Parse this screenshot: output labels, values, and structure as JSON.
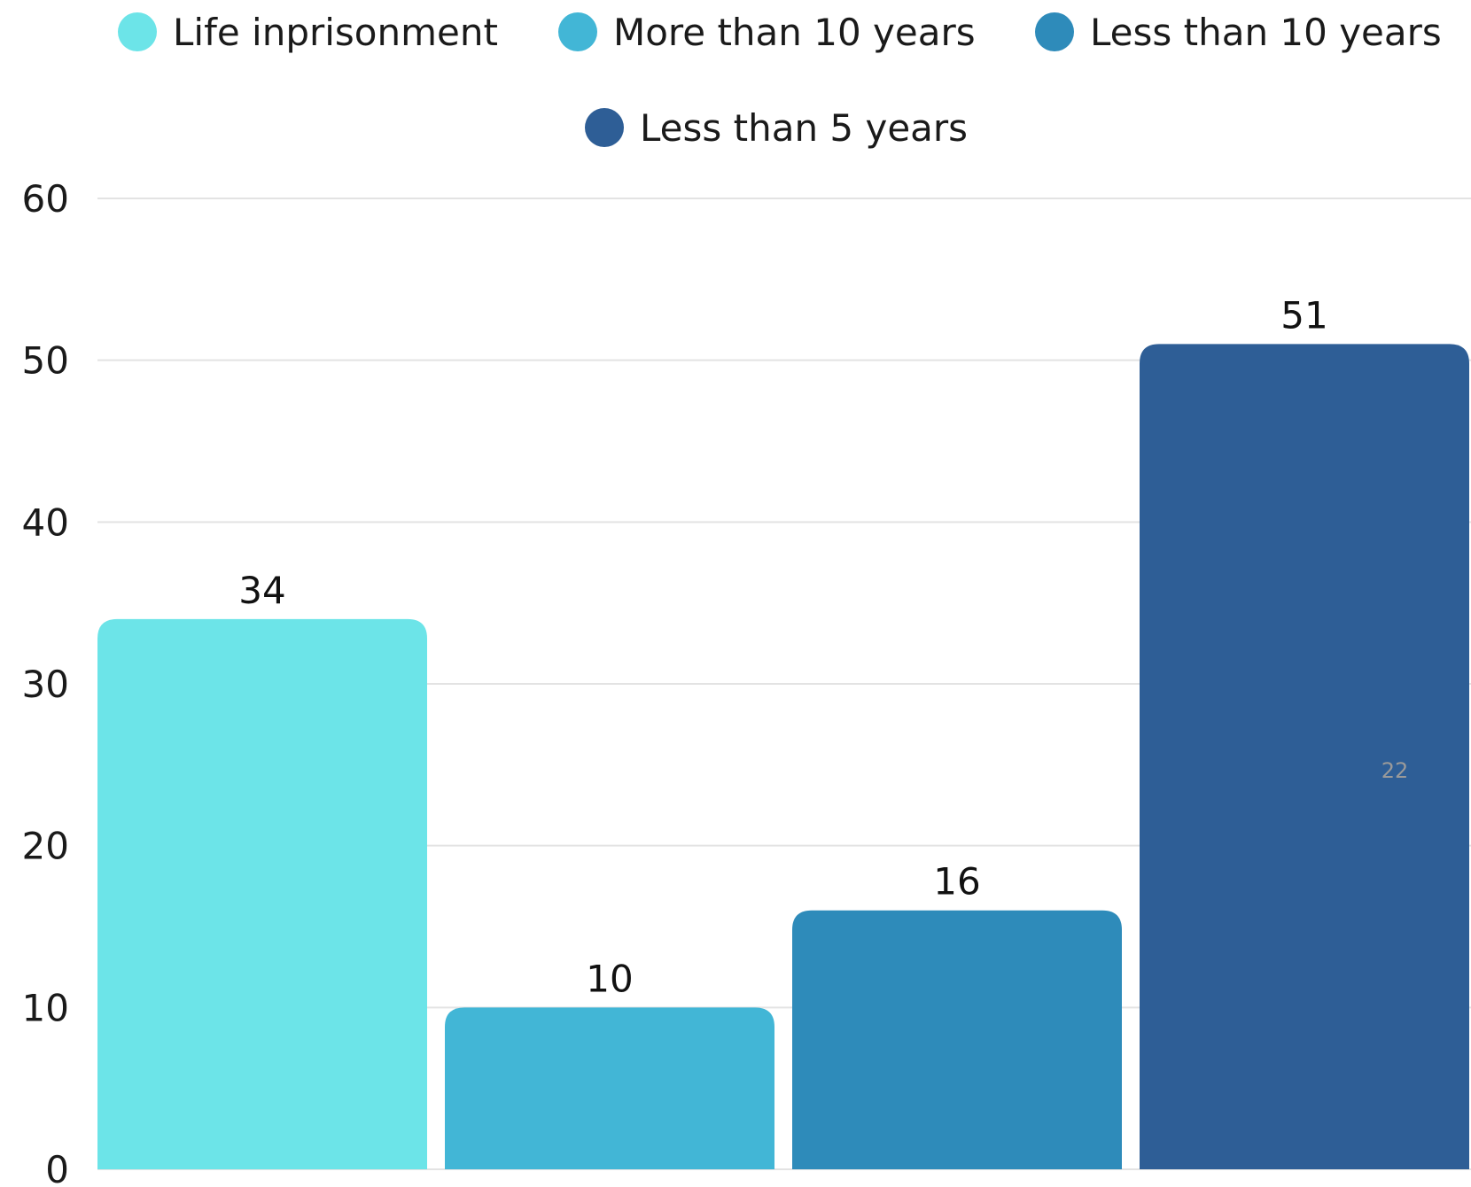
{
  "chart_data": {
    "type": "bar",
    "categories": [
      "Life inprisonment",
      "More than 10 years",
      "Less than 10 years",
      "Less than 5 years"
    ],
    "values": [
      34,
      10,
      16,
      51
    ],
    "colors": [
      "#6ce4e8",
      "#42b6d6",
      "#2e8bba",
      "#2e5e96"
    ],
    "title": "",
    "xlabel": "",
    "ylabel": "",
    "ylim": [
      0,
      60
    ],
    "yticks": [
      0,
      10,
      20,
      30,
      40,
      50,
      60
    ],
    "grid": true,
    "legend_position": "top-center",
    "data_labels": [
      "34",
      "10",
      "16",
      "51"
    ],
    "gridline_color": "#e3e3e3"
  },
  "page_number": "22"
}
